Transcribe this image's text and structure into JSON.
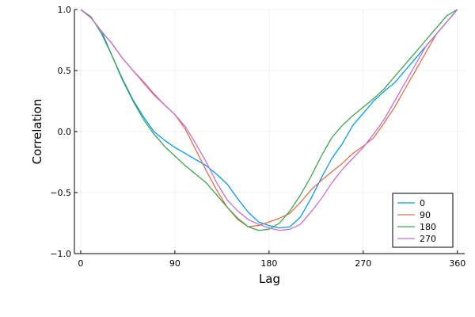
{
  "chart_data": {
    "type": "line",
    "xlabel": "Lag",
    "ylabel": "Correlation",
    "xlim": [
      -6,
      367
    ],
    "ylim": [
      -1.0,
      1.0
    ],
    "x_ticks": [
      0,
      90,
      180,
      270,
      360
    ],
    "x_tick_labels": [
      "0",
      "90",
      "180",
      "270",
      "360"
    ],
    "y_ticks": [
      -1.0,
      -0.5,
      0.0,
      0.5,
      1.0
    ],
    "y_tick_labels": [
      "−1.0",
      "−0.5",
      "0.0",
      "0.5",
      "1.0"
    ],
    "grid": true,
    "legend_position": "bottom-right",
    "x": [
      0,
      10,
      20,
      30,
      40,
      50,
      60,
      70,
      80,
      90,
      100,
      110,
      120,
      130,
      140,
      150,
      160,
      170,
      180,
      190,
      200,
      210,
      220,
      230,
      240,
      250,
      260,
      270,
      280,
      290,
      300,
      310,
      320,
      330,
      340,
      350,
      360
    ],
    "series": [
      {
        "name": "0",
        "color": "#009AFA",
        "values": [
          1.0,
          0.93,
          0.82,
          0.62,
          0.43,
          0.26,
          0.12,
          0.0,
          -0.07,
          -0.13,
          -0.18,
          -0.23,
          -0.28,
          -0.35,
          -0.43,
          -0.55,
          -0.66,
          -0.74,
          -0.77,
          -0.79,
          -0.78,
          -0.7,
          -0.55,
          -0.38,
          -0.22,
          -0.1,
          0.05,
          0.15,
          0.25,
          0.33,
          0.4,
          0.5,
          0.6,
          0.7,
          0.8,
          0.9,
          1.0
        ]
      },
      {
        "name": "90",
        "color": "#E36F47",
        "values": [
          1.0,
          0.93,
          0.82,
          0.72,
          0.6,
          0.5,
          0.4,
          0.3,
          0.22,
          0.14,
          0.02,
          -0.15,
          -0.32,
          -0.48,
          -0.62,
          -0.72,
          -0.78,
          -0.77,
          -0.74,
          -0.71,
          -0.67,
          -0.58,
          -0.48,
          -0.4,
          -0.33,
          -0.26,
          -0.18,
          -0.12,
          -0.05,
          0.07,
          0.2,
          0.35,
          0.5,
          0.65,
          0.8,
          0.9,
          1.0
        ]
      },
      {
        "name": "180",
        "color": "#3EA44E",
        "values": [
          1.0,
          0.94,
          0.8,
          0.62,
          0.42,
          0.25,
          0.1,
          -0.02,
          -0.12,
          -0.2,
          -0.28,
          -0.35,
          -0.42,
          -0.52,
          -0.62,
          -0.71,
          -0.78,
          -0.81,
          -0.8,
          -0.75,
          -0.65,
          -0.52,
          -0.37,
          -0.2,
          -0.05,
          0.05,
          0.13,
          0.2,
          0.27,
          0.35,
          0.45,
          0.55,
          0.65,
          0.75,
          0.85,
          0.95,
          1.0
        ]
      },
      {
        "name": "270",
        "color": "#C271D2",
        "values": [
          1.0,
          0.93,
          0.82,
          0.72,
          0.6,
          0.5,
          0.41,
          0.31,
          0.22,
          0.14,
          0.04,
          -0.1,
          -0.25,
          -0.42,
          -0.56,
          -0.65,
          -0.72,
          -0.76,
          -0.79,
          -0.81,
          -0.8,
          -0.76,
          -0.66,
          -0.55,
          -0.42,
          -0.31,
          -0.22,
          -0.13,
          -0.02,
          0.1,
          0.25,
          0.4,
          0.55,
          0.7,
          0.8,
          0.9,
          1.0
        ]
      }
    ]
  }
}
